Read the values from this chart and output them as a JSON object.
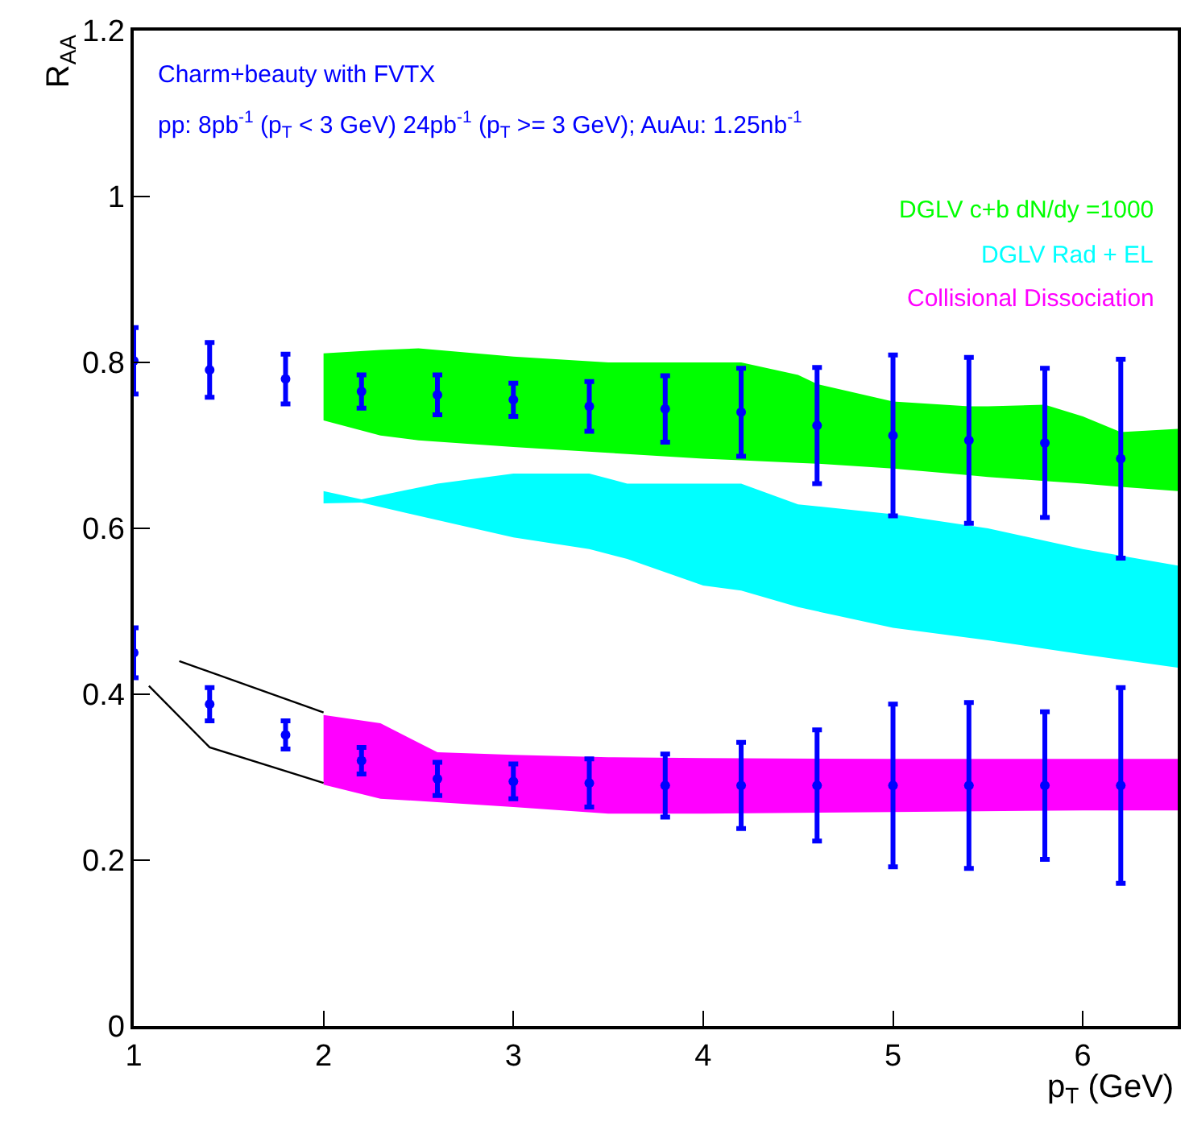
{
  "chart_data": {
    "type": "scatter",
    "xlabel": "p$_{T}$ (GeV)",
    "ylabel": "R$_{AA}$",
    "annotations": [
      "Charm+beauty with FVTX",
      "pp: 8pb$^{-1}$ (p$_{T}$ < 3 GeV) 24pb$^{-1}$ (p$_{T}$ >= 3 GeV); AuAu: 1.25nb$^{-1}$"
    ],
    "xlim": [
      1,
      6.5
    ],
    "xticks": [
      1,
      2,
      3,
      4,
      5,
      6
    ],
    "ylim": [
      0,
      1.2
    ],
    "yticks": [
      0,
      0.2,
      0.4,
      0.6,
      0.8,
      1,
      1.2
    ],
    "series": [
      {
        "name": "DGLV c+b dN/dy =1000",
        "type": "area",
        "color": "#00ff00",
        "x": [
          2,
          2.3,
          2.5,
          3,
          3.5,
          4,
          4.2,
          4.5,
          4.6,
          5,
          5.4,
          5.5,
          5.8,
          6,
          6.2,
          6.5
        ],
        "values": [
          null,
          null,
          null,
          null,
          null,
          null,
          null,
          null,
          null,
          null,
          null,
          null,
          null,
          null,
          null,
          null
        ],
        "lower": [
          0.73,
          0.712,
          0.706,
          0.698,
          0.691,
          0.684,
          0.682,
          0.679,
          0.678,
          0.672,
          0.664,
          0.662,
          0.657,
          0.654,
          0.65,
          0.645
        ],
        "upper": [
          0.811,
          0.815,
          0.817,
          0.807,
          0.8,
          0.8,
          0.8,
          0.785,
          0.774,
          0.753,
          0.747,
          0.747,
          0.749,
          0.735,
          0.716,
          0.72
        ]
      },
      {
        "name": "DGLV Rad + EL",
        "type": "area",
        "color": "#00ffff",
        "x": [
          2,
          2.2,
          2.6,
          3,
          3.4,
          3.6,
          4,
          4.2,
          4.5,
          5,
          5.5,
          6,
          6.5
        ],
        "values": [
          null,
          null,
          null,
          null,
          null,
          null,
          null,
          null,
          null,
          null,
          null,
          null,
          null
        ],
        "lower": [
          0.63,
          0.631,
          0.61,
          0.589,
          0.575,
          0.563,
          0.531,
          0.525,
          0.505,
          0.48,
          0.465,
          0.448,
          0.432
        ],
        "upper": [
          0.645,
          0.635,
          0.654,
          0.666,
          0.666,
          0.654,
          0.654,
          0.654,
          0.629,
          0.617,
          0.6,
          0.575,
          0.555
        ]
      },
      {
        "name": "Collisional Dissociation",
        "type": "area",
        "color": "#ff00ff",
        "x": [
          2,
          2.3,
          2.6,
          3,
          3.5,
          4,
          5,
          6,
          6.5
        ],
        "values": [
          null,
          null,
          null,
          null,
          null,
          null,
          null,
          null,
          null
        ],
        "lower": [
          0.291,
          0.274,
          0.27,
          0.264,
          0.256,
          0.256,
          0.258,
          0.26,
          0.26
        ],
        "upper": [
          0.375,
          0.365,
          0.33,
          0.327,
          0.324,
          0.323,
          0.322,
          0.322,
          0.322
        ]
      },
      {
        "type": "line",
        "color": "#000000",
        "x": [
          1.24,
          2
        ],
        "values": [
          0.44,
          0.378
        ]
      },
      {
        "type": "line",
        "color": "#000000",
        "x": [
          1.08,
          1.4,
          2
        ],
        "values": [
          0.41,
          0.336,
          0.293
        ]
      },
      {
        "color": "#0000ff",
        "marker": "circle",
        "x": [
          1,
          1.4,
          1.8,
          2.2,
          2.6,
          3,
          3.4,
          3.8,
          4.2,
          4.6,
          5,
          5.4,
          5.8,
          6.2
        ],
        "values": [
          0.802,
          0.791,
          0.78,
          0.765,
          0.761,
          0.755,
          0.747,
          0.744,
          0.74,
          0.724,
          0.712,
          0.706,
          0.703,
          0.684
        ],
        "errors": [
          0.04,
          0.033,
          0.03,
          0.02,
          0.024,
          0.02,
          0.03,
          0.04,
          0.053,
          0.07,
          0.097,
          0.1,
          0.09,
          0.12
        ]
      },
      {
        "color": "#0000ff",
        "marker": "circle",
        "x": [
          1,
          1.4,
          1.8,
          2.2,
          2.6,
          3,
          3.4,
          3.8,
          4.2,
          4.6,
          5,
          5.4,
          5.8,
          6.2
        ],
        "values": [
          0.45,
          0.388,
          0.351,
          0.32,
          0.298,
          0.295,
          0.293,
          0.29,
          0.29,
          0.29,
          0.29,
          0.29,
          0.29,
          0.29
        ],
        "errors": [
          0.03,
          0.02,
          0.017,
          0.016,
          0.02,
          0.021,
          0.029,
          0.038,
          0.052,
          0.067,
          0.098,
          0.1,
          0.089,
          0.118
        ]
      }
    ]
  }
}
